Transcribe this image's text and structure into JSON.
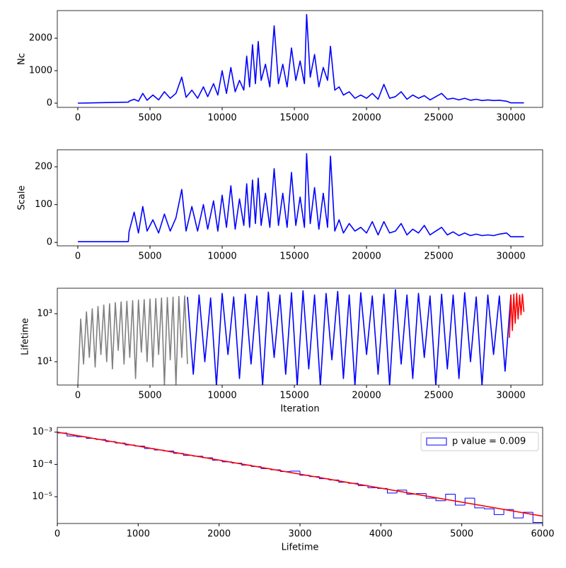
{
  "chart_data": [
    {
      "type": "line",
      "ylabel": "Nc",
      "xlim": [
        -1420,
        32200
      ],
      "ylim": [
        -130,
        2850
      ],
      "xticks": [
        0,
        5000,
        10000,
        15000,
        20000,
        25000,
        30000
      ],
      "yticks": [
        0,
        1000,
        2000
      ],
      "series": [
        {
          "color": "blue",
          "x": [
            0,
            3500,
            3550,
            3900,
            4200,
            4500,
            4800,
            5200,
            5600,
            6000,
            6400,
            6800,
            7200,
            7500,
            7900,
            8300,
            8700,
            9000,
            9400,
            9700,
            10000,
            10300,
            10600,
            10900,
            11200,
            11500,
            11700,
            11900,
            12100,
            12300,
            12500,
            12700,
            13000,
            13300,
            13600,
            13900,
            14200,
            14500,
            14800,
            15100,
            15400,
            15700,
            15850,
            16100,
            16400,
            16700,
            17000,
            17300,
            17500,
            17800,
            18100,
            18400,
            18800,
            19200,
            19600,
            20000,
            20400,
            20800,
            21200,
            21600,
            22000,
            22400,
            22800,
            23200,
            23600,
            24000,
            24400,
            24800,
            25200,
            25600,
            26000,
            26400,
            26800,
            27200,
            27600,
            28000,
            28400,
            28800,
            29200,
            29700,
            30000,
            30900
          ],
          "values": [
            0,
            30,
            60,
            120,
            60,
            300,
            90,
            250,
            100,
            350,
            150,
            300,
            800,
            180,
            400,
            150,
            500,
            200,
            600,
            250,
            1000,
            300,
            1100,
            350,
            700,
            400,
            1450,
            500,
            1800,
            600,
            1900,
            700,
            1200,
            500,
            2380,
            600,
            1200,
            500,
            1700,
            700,
            1300,
            600,
            2730,
            800,
            1500,
            500,
            1100,
            700,
            1750,
            400,
            500,
            250,
            350,
            150,
            250,
            150,
            300,
            120,
            580,
            150,
            200,
            350,
            120,
            250,
            150,
            230,
            100,
            200,
            300,
            120,
            150,
            100,
            150,
            90,
            120,
            80,
            100,
            80,
            90,
            60,
            10,
            10
          ]
        }
      ]
    },
    {
      "type": "line",
      "ylabel": "Scale",
      "xlim": [
        -1420,
        32200
      ],
      "ylim": [
        -9,
        245
      ],
      "xticks": [
        0,
        5000,
        10000,
        15000,
        20000,
        25000,
        30000
      ],
      "yticks": [
        0,
        100,
        200
      ],
      "series": [
        {
          "color": "blue",
          "x": [
            0,
            3500,
            3550,
            3900,
            4200,
            4500,
            4800,
            5200,
            5600,
            6000,
            6400,
            6800,
            7200,
            7500,
            7900,
            8300,
            8700,
            9000,
            9400,
            9700,
            10000,
            10300,
            10600,
            10900,
            11200,
            11500,
            11700,
            11900,
            12100,
            12300,
            12500,
            12700,
            13000,
            13300,
            13600,
            13900,
            14200,
            14500,
            14800,
            15100,
            15400,
            15700,
            15850,
            16100,
            16400,
            16700,
            17000,
            17300,
            17500,
            17800,
            18100,
            18400,
            18800,
            19200,
            19600,
            20000,
            20400,
            20800,
            21200,
            21600,
            22000,
            22400,
            22800,
            23200,
            23600,
            24000,
            24400,
            24800,
            25200,
            25600,
            26000,
            26400,
            26800,
            27200,
            27600,
            28000,
            28400,
            28800,
            29200,
            29700,
            30000,
            30900
          ],
          "values": [
            2,
            2,
            28,
            80,
            25,
            95,
            30,
            60,
            25,
            75,
            30,
            65,
            140,
            30,
            95,
            30,
            100,
            35,
            110,
            30,
            125,
            40,
            150,
            35,
            115,
            45,
            155,
            40,
            165,
            50,
            170,
            45,
            130,
            40,
            195,
            45,
            130,
            40,
            185,
            45,
            120,
            40,
            235,
            50,
            145,
            35,
            130,
            40,
            228,
            30,
            60,
            25,
            50,
            30,
            40,
            25,
            55,
            20,
            55,
            25,
            30,
            50,
            20,
            35,
            25,
            45,
            20,
            30,
            40,
            20,
            28,
            18,
            25,
            18,
            22,
            18,
            20,
            18,
            22,
            25,
            15,
            15
          ]
        }
      ]
    },
    {
      "type": "line",
      "ylabel": "Lifetime",
      "xlabel": "Iteration",
      "log_y": true,
      "xlim": [
        -1420,
        32200
      ],
      "ylim": [
        1.07,
        11500
      ],
      "xticks": [
        0,
        5000,
        10000,
        15000,
        20000,
        25000,
        30000
      ],
      "yticks": [
        {
          "value": 10,
          "label": "10¹"
        },
        {
          "value": 1000,
          "label": "10³"
        }
      ],
      "series": [
        {
          "color": "gray",
          "x": [
            0,
            200,
            400,
            600,
            800,
            1000,
            1200,
            1400,
            1600,
            1800,
            2000,
            2200,
            2400,
            2600,
            2800,
            3000,
            3200,
            3400,
            3600,
            3800,
            4000,
            4200,
            4400,
            4600,
            4800,
            5000,
            5200,
            5400,
            5600,
            5800,
            6000,
            6200,
            6400,
            6600,
            6800,
            7000,
            7200,
            7400,
            7600
          ],
          "values": [
            1,
            600,
            8,
            1200,
            15,
            1600,
            6,
            2000,
            20,
            2300,
            10,
            2600,
            5,
            2900,
            30,
            3100,
            8,
            3300,
            15,
            3500,
            2,
            3700,
            25,
            3900,
            10,
            4100,
            6,
            4300,
            20,
            4500,
            1,
            4700,
            12,
            4900,
            1,
            5200,
            15,
            5500,
            8
          ]
        },
        {
          "color": "blue",
          "x": [
            7600,
            8000,
            8400,
            8800,
            9200,
            9600,
            10000,
            10400,
            10800,
            11200,
            11600,
            12000,
            12400,
            12800,
            13200,
            13600,
            14000,
            14400,
            14800,
            15200,
            15600,
            16000,
            16400,
            16800,
            17200,
            17600,
            18000,
            18400,
            18800,
            19200,
            19600,
            20000,
            20400,
            20800,
            21200,
            21600,
            22000,
            22400,
            22800,
            23200,
            23600,
            24000,
            24400,
            24800,
            25200,
            25600,
            26000,
            26400,
            26800,
            27200,
            27600,
            28000,
            28400,
            28800,
            29200,
            29600,
            30000
          ],
          "values": [
            5000,
            3,
            6000,
            10,
            4500,
            1,
            7000,
            20,
            5000,
            2,
            6500,
            8,
            5500,
            1,
            8000,
            15,
            6000,
            3,
            7500,
            1,
            9000,
            5,
            6000,
            1,
            7000,
            12,
            8500,
            2,
            6000,
            1,
            7500,
            20,
            5500,
            3,
            6500,
            1,
            10000,
            8,
            6000,
            2,
            7000,
            15,
            5500,
            1,
            6500,
            5,
            6000,
            2,
            7500,
            10,
            5000,
            1,
            6000,
            20,
            5500,
            4,
            6000
          ]
        },
        {
          "color": "red",
          "x": [
            29900,
            30000,
            30100,
            30200,
            30300,
            30400,
            30500,
            30600,
            30700,
            30800,
            30900
          ],
          "values": [
            100,
            6000,
            200,
            6500,
            400,
            7000,
            600,
            6000,
            900,
            6500,
            1200
          ]
        }
      ]
    },
    {
      "type": "histogram",
      "xlabel": "Lifetime",
      "log_y": true,
      "legend": "upper right",
      "xlim": [
        0,
        6000
      ],
      "ylim": [
        1.48e-06,
        0.0014
      ],
      "xticks": [
        0,
        1000,
        2000,
        3000,
        4000,
        5000,
        6000
      ],
      "yticks": [
        {
          "value": 1e-05,
          "label": "10⁻⁵"
        },
        {
          "value": 0.0001,
          "label": "10⁻⁴"
        },
        {
          "value": 0.001,
          "label": "10⁻³"
        }
      ],
      "bins": [
        0,
        120,
        240,
        360,
        480,
        600,
        720,
        840,
        960,
        1080,
        1200,
        1320,
        1440,
        1560,
        1680,
        1800,
        1920,
        2040,
        2160,
        2280,
        2400,
        2520,
        2640,
        2760,
        2880,
        3000,
        3120,
        3240,
        3360,
        3480,
        3600,
        3720,
        3840,
        3960,
        4080,
        4200,
        4320,
        4440,
        4560,
        4680,
        4800,
        4920,
        5040,
        5160,
        5280,
        5400,
        5520,
        5640,
        5760,
        5880,
        6000
      ],
      "series": [
        {
          "name": "p value = 0.009",
          "color": "blue",
          "values": [
            0.00094,
            0.00076,
            0.00072,
            0.00064,
            0.00059,
            0.00051,
            0.00046,
            0.0004,
            0.00037,
            0.00031,
            0.00028,
            0.00026,
            0.00022,
            0.00019,
            0.00018,
            0.00016,
            0.000135,
            0.00012,
            0.00011,
            9.5e-05,
            8.6e-05,
            7.4e-05,
            6.8e-05,
            6e-05,
            6.2e-05,
            4.6e-05,
            4.2e-05,
            3.6e-05,
            3.3e-05,
            2.8e-05,
            2.6e-05,
            2.2e-05,
            1.9e-05,
            1.8e-05,
            1.3e-05,
            1.6e-05,
            1.2e-05,
            1.25e-05,
            9e-06,
            7.5e-06,
            1.2e-05,
            5.5e-06,
            9e-06,
            4.5e-06,
            4.2e-06,
            2.8e-06,
            4e-06,
            2.2e-06,
            3.3e-06,
            1.6e-06
          ]
        }
      ],
      "fit": {
        "color": "red",
        "x": [
          0,
          6000
        ],
        "values": [
          0.001,
          2.5e-06
        ]
      }
    }
  ]
}
